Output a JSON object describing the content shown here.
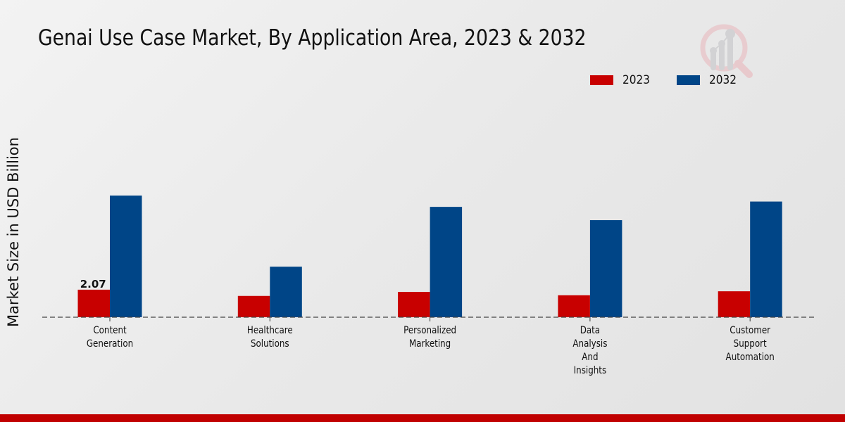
{
  "chart_data": {
    "type": "bar",
    "title": "Genai Use Case Market, By Application Area, 2023 & 2032",
    "xlabel": "",
    "ylabel": "Market Size in USD Billion",
    "categories": [
      [
        "Content",
        "Generation"
      ],
      [
        "Healthcare",
        "Solutions"
      ],
      [
        "Personalized",
        "Marketing"
      ],
      [
        "Data",
        "Analysis",
        "And",
        "Insights"
      ],
      [
        "Customer",
        "Support",
        "Automation"
      ]
    ],
    "series": [
      {
        "name": "2023",
        "color": "#c80000",
        "values": [
          2.07,
          1.6,
          1.9,
          1.65,
          1.95
        ]
      },
      {
        "name": "2032",
        "color": "#004587",
        "values": [
          9.15,
          3.8,
          8.3,
          7.3,
          8.7
        ]
      }
    ],
    "data_labels": [
      {
        "series": "2023",
        "category_index": 0,
        "text": "2.07"
      }
    ],
    "ylim": [
      0,
      10
    ],
    "grid": false,
    "legend": "top-right",
    "baseline_style": "dashed"
  },
  "accent_bottom_bar_color": "#c00000"
}
